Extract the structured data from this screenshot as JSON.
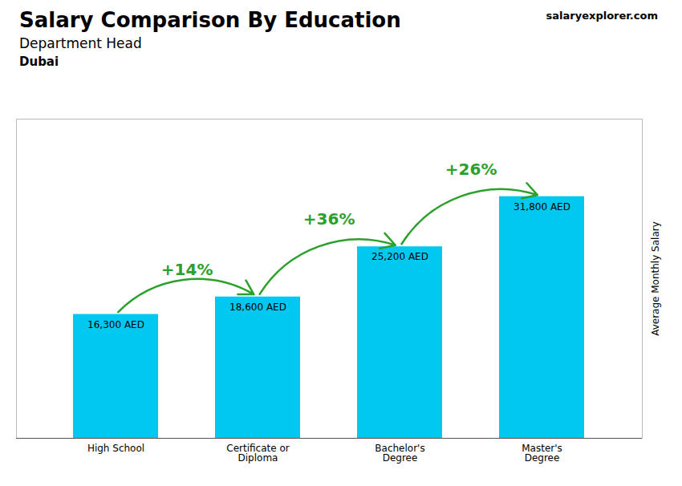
{
  "chart_data": {
    "type": "bar",
    "title": "Salary Comparison By Education",
    "subtitle": [
      "Department Head",
      "Dubai"
    ],
    "ylabel": "Average Monthly Salary",
    "categories": [
      "High School",
      "Certificate or\nDiploma",
      "Bachelor's\nDegree",
      "Master's\nDegree"
    ],
    "values": [
      16300,
      18600,
      25200,
      31800
    ],
    "value_labels": [
      "16,300 AED",
      "18,600 AED",
      "25,200 AED",
      "31,800 AED"
    ],
    "data_labels": true,
    "color": "#00c8f0",
    "ylim": [
      0,
      42000
    ],
    "tick_labels": "x",
    "annotations": [
      {
        "text": "+14%",
        "from": 0,
        "to": 1
      },
      {
        "text": "+36%",
        "from": 1,
        "to": 2
      },
      {
        "text": "+26%",
        "from": 2,
        "to": 3
      },
      {
        "text": "salaryexplorer.com"
      }
    ]
  }
}
